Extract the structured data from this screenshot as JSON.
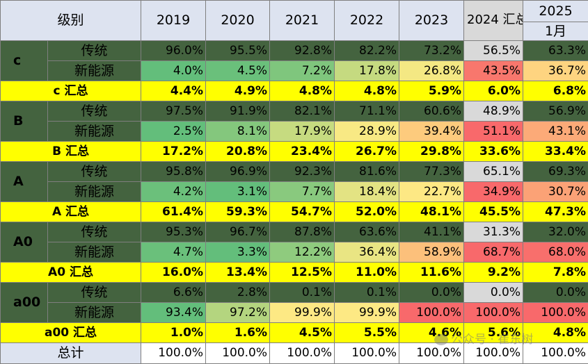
{
  "chart_data": {
    "type": "table",
    "header": {
      "level": "级别",
      "years": [
        "2019",
        "2020",
        "2021",
        "2022",
        "2023",
        "2024 汇总"
      ],
      "last_top": "2025",
      "last_bottom": "1月"
    },
    "columns": [
      "2019",
      "2020",
      "2021",
      "2022",
      "2023",
      "2024 汇总",
      "2025 1月"
    ],
    "groups": [
      {
        "level": "c",
        "rows": [
          {
            "label": "传统",
            "type": "traditional",
            "values": [
              "96.0%",
              "95.5%",
              "92.8%",
              "82.2%",
              "73.2%",
              "56.5%",
              "63.3%"
            ]
          },
          {
            "label": "新能源",
            "type": "nev",
            "values": [
              "4.0%",
              "4.5%",
              "7.2%",
              "17.8%",
              "26.8%",
              "43.5%",
              "36.7%"
            ],
            "bg": [
              "#63be7b",
              "#6ac07b",
              "#7fc67d",
              "#c5da80",
              "#f4e883",
              "#f8776d",
              "#fed480"
            ]
          }
        ],
        "summary": {
          "label": "c 汇总",
          "values": [
            "4.4%",
            "4.9%",
            "4.8%",
            "4.8%",
            "5.9%",
            "6.0%",
            "6.8%"
          ]
        }
      },
      {
        "level": "B",
        "rows": [
          {
            "label": "传统",
            "type": "traditional",
            "values": [
              "97.5%",
              "91.9%",
              "82.1%",
              "71.1%",
              "60.6%",
              "48.9%",
              "56.9%"
            ]
          },
          {
            "label": "新能源",
            "type": "nev",
            "values": [
              "2.5%",
              "8.1%",
              "17.9%",
              "28.9%",
              "39.4%",
              "51.1%",
              "43.1%"
            ],
            "bg": [
              "#63be7b",
              "#84c77d",
              "#c6db80",
              "#f8e984",
              "#fdcb7d",
              "#f8696b",
              "#fcaa78"
            ]
          }
        ],
        "summary": {
          "label": "B 汇总",
          "values": [
            "17.2%",
            "20.8%",
            "23.4%",
            "26.7%",
            "29.8%",
            "33.6%",
            "33.4%"
          ]
        }
      },
      {
        "level": "A",
        "rows": [
          {
            "label": "传统",
            "type": "traditional",
            "values": [
              "95.8%",
              "96.9%",
              "92.3%",
              "81.6%",
              "77.3%",
              "65.1%",
              "69.3%"
            ]
          },
          {
            "label": "新能源",
            "type": "nev",
            "values": [
              "4.2%",
              "3.1%",
              "7.7%",
              "18.4%",
              "22.7%",
              "34.9%",
              "30.7%"
            ],
            "bg": [
              "#6bc07b",
              "#63be7b",
              "#89c97e",
              "#e3e383",
              "#fde884",
              "#f8696b",
              "#fba276"
            ]
          }
        ],
        "summary": {
          "label": "A 汇总",
          "values": [
            "61.4%",
            "59.3%",
            "54.7%",
            "52.0%",
            "48.1%",
            "45.5%",
            "47.3%"
          ]
        }
      },
      {
        "level": "A0",
        "rows": [
          {
            "label": "传统",
            "type": "traditional",
            "values": [
              "95.3%",
              "96.7%",
              "87.8%",
              "63.6%",
              "41.1%",
              "31.3%",
              "32.0%"
            ]
          },
          {
            "label": "新能源",
            "type": "nev",
            "values": [
              "4.7%",
              "3.3%",
              "12.2%",
              "36.4%",
              "58.9%",
              "68.7%",
              "68.0%"
            ],
            "bg": [
              "#6ac07b",
              "#63be7b",
              "#8fcb7e",
              "#e9e583",
              "#fcc07b",
              "#f8696b",
              "#f86f6c"
            ]
          }
        ],
        "summary": {
          "label": "A0 汇总",
          "values": [
            "16.0%",
            "13.4%",
            "12.5%",
            "11.0%",
            "11.6%",
            "9.2%",
            "7.8%"
          ]
        }
      },
      {
        "level": "a00",
        "rows": [
          {
            "label": "传统",
            "type": "traditional",
            "values": [
              "6.6%",
              "2.8%",
              "0.1%",
              "0.1%",
              "0.0%",
              "0.0%",
              "0.0%"
            ]
          },
          {
            "label": "新能源",
            "type": "nev",
            "values": [
              "93.4%",
              "97.2%",
              "99.9%",
              "99.9%",
              "100.0%",
              "100.0%",
              "100.0%"
            ],
            "bg": [
              "#63be7b",
              "#b4d57f",
              "#fde984",
              "#fde984",
              "#f8696b",
              "#f8696b",
              "#f8696b"
            ]
          }
        ],
        "summary": {
          "label": "a00 汇总",
          "values": [
            "1.0%",
            "1.6%",
            "4.5%",
            "5.5%",
            "4.6%",
            "5.6%",
            "4.8%"
          ]
        }
      }
    ],
    "total": {
      "label": "总计",
      "values": [
        "100.0%",
        "100.0%",
        "100.0%",
        "100.0%",
        "100.0%",
        "100.0%",
        "100.0%"
      ]
    }
  },
  "watermark": "公众号 · 崔东树"
}
